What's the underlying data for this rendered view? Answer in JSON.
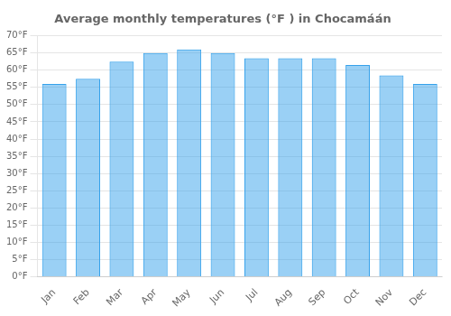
{
  "chart_data": {
    "type": "bar",
    "title": "Average monthly temperatures (°F ) in Chocamáán",
    "categories": [
      "Jan",
      "Feb",
      "Mar",
      "Apr",
      "May",
      "Jun",
      "Jul",
      "Aug",
      "Sep",
      "Oct",
      "Nov",
      "Dec"
    ],
    "values": [
      56.0,
      57.5,
      62.5,
      65.0,
      66.0,
      65.0,
      63.5,
      63.5,
      63.5,
      61.5,
      58.5,
      56.0
    ],
    "ylim": [
      0,
      70
    ],
    "yticks": [
      {
        "value": 0,
        "label": "0°F"
      },
      {
        "value": 5,
        "label": "5°F"
      },
      {
        "value": 10,
        "label": "10°F"
      },
      {
        "value": 15,
        "label": "15°F"
      },
      {
        "value": 20,
        "label": "20°F"
      },
      {
        "value": 25,
        "label": "25°F"
      },
      {
        "value": 30,
        "label": "30°F"
      },
      {
        "value": 35,
        "label": "35°F"
      },
      {
        "value": 40,
        "label": "40°F"
      },
      {
        "value": 45,
        "label": "45°F"
      },
      {
        "value": 50,
        "label": "50°F"
      },
      {
        "value": 55,
        "label": "55°F"
      },
      {
        "value": 60,
        "label": "60°F"
      },
      {
        "value": 65,
        "label": "65°F"
      },
      {
        "value": 70,
        "label": "70°F"
      }
    ],
    "grid": true
  }
}
